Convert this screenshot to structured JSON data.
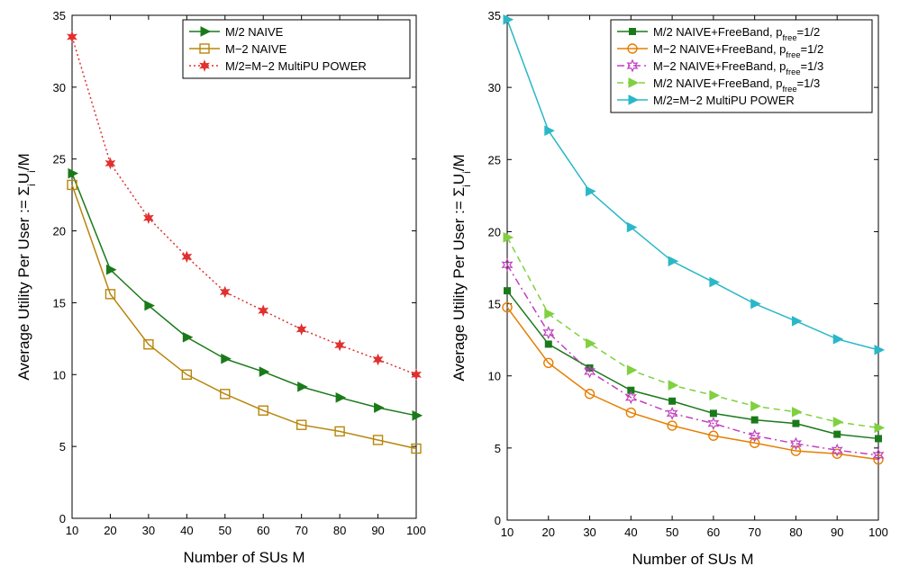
{
  "chart_data": [
    {
      "type": "line",
      "xlabel": "Number of SUs M",
      "ylabel": "Average Utility Per User := Σ_i U_i/M",
      "ylabel_parts": [
        "Average Utility Per User := Σ",
        "i",
        "U",
        "i",
        "/M"
      ],
      "xlim": [
        10,
        100
      ],
      "ylim": [
        0,
        35
      ],
      "xticks": [
        10,
        20,
        30,
        40,
        50,
        60,
        70,
        80,
        90,
        100
      ],
      "yticks": [
        0,
        5,
        10,
        15,
        20,
        25,
        30,
        35
      ],
      "grid": false,
      "legend_position": "top-right",
      "x": [
        10,
        20,
        30,
        40,
        50,
        60,
        70,
        80,
        90,
        100
      ],
      "series": [
        {
          "name": "M/2 NAIVE",
          "name_parts": [
            "M/2 NAIVE"
          ],
          "color": "#1a7a1a",
          "marker": "triangle-right",
          "dash": "solid",
          "values": [
            24.0,
            17.3,
            14.8,
            12.6,
            11.1,
            10.2,
            9.15,
            8.4,
            7.7,
            7.15
          ]
        },
        {
          "name": "M−2 NAIVE",
          "name_parts": [
            "M−2 NAIVE"
          ],
          "color": "#b8860b",
          "marker": "square",
          "dash": "solid",
          "values": [
            23.2,
            15.6,
            12.1,
            10.0,
            8.65,
            7.5,
            6.5,
            6.05,
            5.45,
            4.85
          ]
        },
        {
          "name": "M/2=M−2 MultiPU POWER",
          "name_parts": [
            "M/2=M−2 MultiPU POWER"
          ],
          "color": "#e03030",
          "marker": "star",
          "dash": "dotted",
          "values": [
            33.5,
            24.7,
            20.9,
            18.2,
            15.75,
            14.45,
            13.15,
            12.05,
            11.05,
            10.0
          ]
        }
      ]
    },
    {
      "type": "line",
      "xlabel": "Number of SUs M",
      "ylabel": "Average Utility Per User := Σ_i U_i/M",
      "ylabel_parts": [
        "Average Utility Per User := Σ",
        "i",
        "U",
        "i",
        "/M"
      ],
      "xlim": [
        10,
        100
      ],
      "ylim": [
        0,
        35
      ],
      "xticks": [
        10,
        20,
        30,
        40,
        50,
        60,
        70,
        80,
        90,
        100
      ],
      "yticks": [
        0,
        5,
        10,
        15,
        20,
        25,
        30,
        35
      ],
      "grid": false,
      "legend_position": "top-right",
      "x": [
        10,
        20,
        30,
        40,
        50,
        60,
        70,
        80,
        90,
        100
      ],
      "series": [
        {
          "name": "M/2 NAIVE+FreeBand, p_free=1/2",
          "name_parts": [
            "M/2 NAIVE+FreeBand, p",
            "free",
            "=1/2"
          ],
          "color": "#1a7a1a",
          "marker": "square-small",
          "dash": "solid",
          "values": [
            15.9,
            12.2,
            10.55,
            9.0,
            8.25,
            7.4,
            6.95,
            6.7,
            5.95,
            5.65
          ]
        },
        {
          "name": "M−2 NAIVE+FreeBand, p_free=1/2",
          "name_parts": [
            "M−2 NAIVE+FreeBand, p",
            "free",
            "=1/2"
          ],
          "color": "#e67e00",
          "marker": "circle",
          "dash": "solid",
          "values": [
            14.75,
            10.9,
            8.75,
            7.45,
            6.55,
            5.85,
            5.35,
            4.8,
            4.6,
            4.2
          ]
        },
        {
          "name": "M−2 NAIVE+FreeBand, p_free=1/3",
          "name_parts": [
            "M−2 NAIVE+FreeBand, p",
            "free",
            "=1/3"
          ],
          "color": "#c040c0",
          "marker": "star6",
          "dash": "dashdot",
          "values": [
            17.7,
            13.0,
            10.3,
            8.5,
            7.4,
            6.7,
            5.85,
            5.3,
            4.85,
            4.5
          ]
        },
        {
          "name": "M/2 NAIVE+FreeBand, p_free=1/3",
          "name_parts": [
            "M/2 NAIVE+FreeBand, p",
            "free",
            "=1/3"
          ],
          "color": "#80d040",
          "marker": "triangle-right",
          "dash": "dashed",
          "values": [
            19.6,
            14.3,
            12.25,
            10.4,
            9.35,
            8.65,
            7.9,
            7.5,
            6.8,
            6.4
          ]
        },
        {
          "name": "M/2=M−2 MultiPU POWER",
          "name_parts": [
            "M/2=M−2 MultiPU POWER"
          ],
          "color": "#2ab8c8",
          "marker": "triangle-right",
          "dash": "solid",
          "values": [
            34.7,
            27.0,
            22.8,
            20.3,
            17.95,
            16.5,
            15.0,
            13.8,
            12.55,
            11.8
          ]
        }
      ]
    }
  ]
}
